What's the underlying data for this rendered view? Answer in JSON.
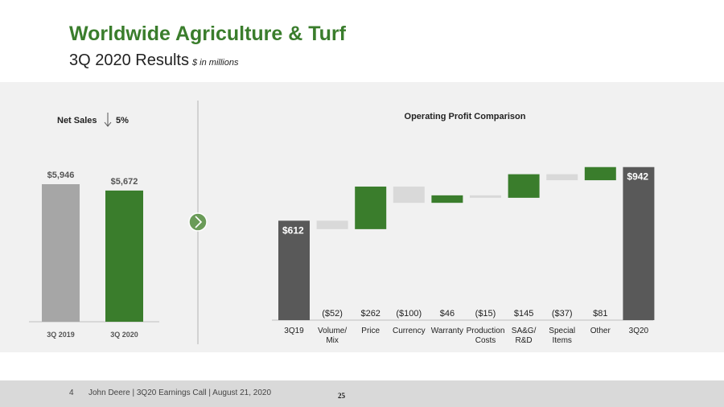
{
  "header": {
    "title": "Worldwide Agriculture & Turf",
    "subtitle": "3Q 2020 Results",
    "units": "$ in millions"
  },
  "net_sales": {
    "label": "Net Sales",
    "change": "5%",
    "direction": "down"
  },
  "footer": {
    "page": "4",
    "text": "John Deere | 3Q20 Earnings Call | August 21, 2020",
    "slide_number": "25"
  },
  "colors": {
    "green": "#3a7d2c",
    "gray_bar": "#a6a6a6",
    "dark_bar": "#595959",
    "negative_bar": "#d9d9d9",
    "panel": "#f1f1f1"
  },
  "chart_data": [
    {
      "type": "bar",
      "title": "",
      "categories": [
        "3Q 2019",
        "3Q 2020"
      ],
      "values": [
        5946,
        5672
      ],
      "value_labels": [
        "$5,946",
        "$5,672"
      ],
      "ylim": [
        0,
        6000
      ]
    },
    {
      "type": "waterfall",
      "title": "Operating Profit Comparison",
      "categories": [
        "3Q19",
        "Volume/\nMix",
        "Price",
        "Currency",
        "Warranty",
        "Production\nCosts",
        "SA&G/\nR&D",
        "Special\nItems",
        "Other",
        "3Q20"
      ],
      "values": [
        612,
        -52,
        262,
        -100,
        46,
        -15,
        145,
        -37,
        81,
        942
      ],
      "kinds": [
        "total",
        "delta",
        "delta",
        "delta",
        "delta",
        "delta",
        "delta",
        "delta",
        "delta",
        "total"
      ],
      "value_labels": [
        "$612",
        "($52)",
        "$262",
        "($100)",
        "$46",
        "($15)",
        "$145",
        "($37)",
        "$81",
        "$942"
      ],
      "ylim": [
        0,
        1000
      ]
    }
  ]
}
